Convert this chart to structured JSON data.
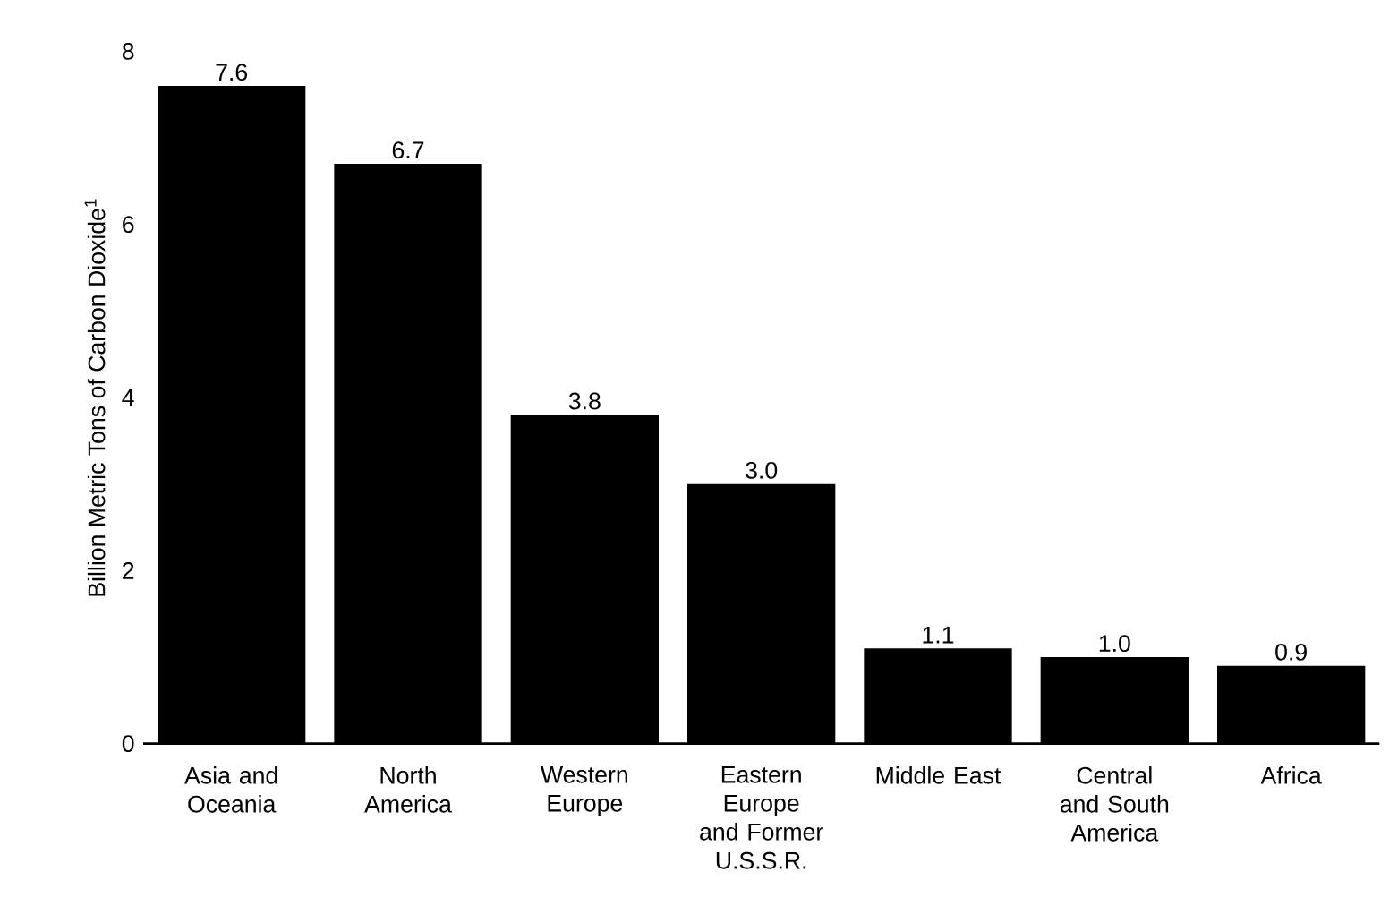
{
  "chart_data": {
    "type": "bar",
    "ylabel": "Billion Metric Tons of Carbon Dioxide$^{1}$",
    "categories": [
      "Asia and Oceania",
      "North America",
      "Western Europe",
      "Eastern Europe and Former U.S.S.R.",
      "Middle East",
      "Central and South America",
      "Africa"
    ],
    "values": [
      7.6,
      6.7,
      3.8,
      3.0,
      1.1,
      1.0,
      0.9
    ],
    "color": "#000000",
    "ylim": [
      0,
      8
    ],
    "yticks": [
      0,
      2,
      4,
      6,
      8
    ],
    "value_labels": [
      "7.6",
      "6.7",
      "3.8",
      "3.0",
      "1.1",
      "1.0",
      "0.9"
    ]
  }
}
